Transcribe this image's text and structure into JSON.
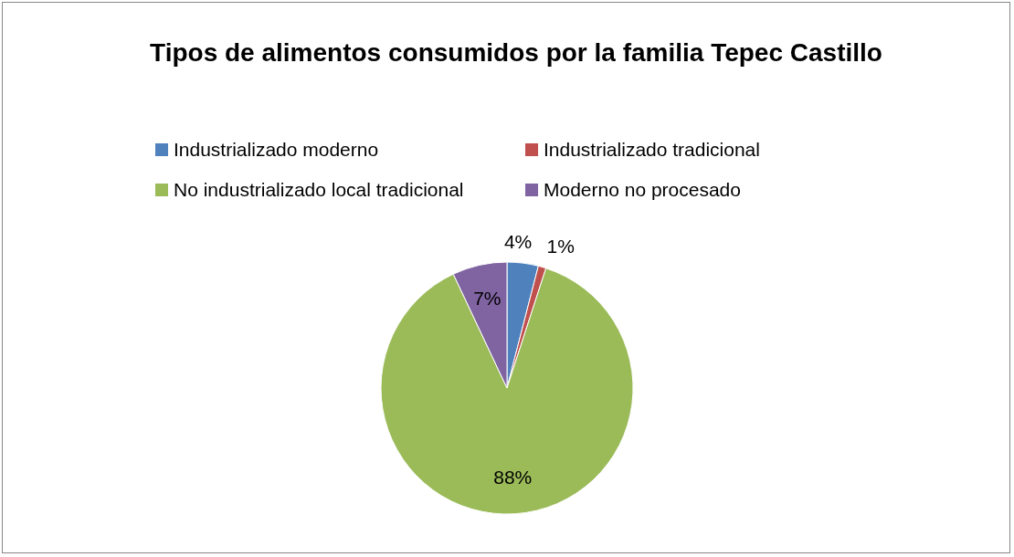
{
  "chart_data": {
    "type": "pie",
    "title": "Tipos de alimentos consumidos por la familia Tepec Castillo",
    "categories": [
      "Industrializado moderno",
      "Industrializado tradicional",
      "No industrializado local tradicional",
      "Moderno no procesado"
    ],
    "values": [
      4,
      1,
      88,
      7
    ],
    "colors": [
      "#4f81bd",
      "#c0504d",
      "#9bbb59",
      "#8064a2"
    ],
    "value_labels": [
      "4%",
      "1%",
      "88%",
      "7%"
    ],
    "legend": "top"
  }
}
